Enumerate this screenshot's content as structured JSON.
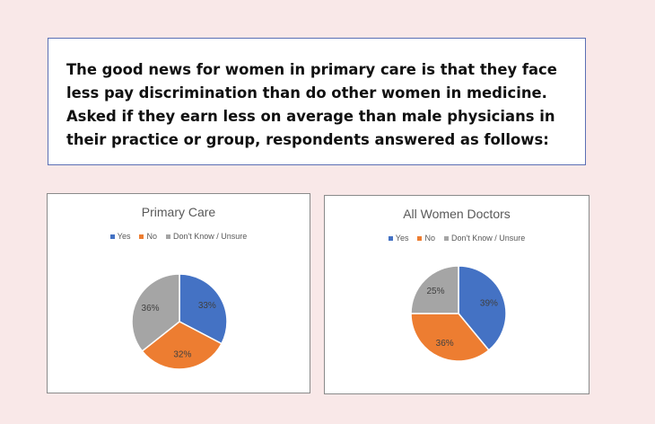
{
  "intro_text": "The good news for women in primary care is that they face less pay discrimination than do other women in medicine. Asked if they earn less on average than male physicians in their practice or group, respondents answered as follows:",
  "chart_data": [
    {
      "type": "pie",
      "title": "Primary Care",
      "categories": [
        "Yes",
        "No",
        "Don't Know / Unsure"
      ],
      "values": [
        33,
        32,
        36
      ],
      "labels": [
        "33%",
        "32%",
        "36%"
      ],
      "colors": [
        "#4472c4",
        "#ed7d31",
        "#a5a5a5"
      ],
      "legend": "top"
    },
    {
      "type": "pie",
      "title": "All Women Doctors",
      "categories": [
        "Yes",
        "No",
        "Don't Know / Unsure"
      ],
      "values": [
        39,
        36,
        25
      ],
      "labels": [
        "39%",
        "36%",
        "25%"
      ],
      "colors": [
        "#4472c4",
        "#ed7d31",
        "#a5a5a5"
      ],
      "legend": "top"
    }
  ]
}
